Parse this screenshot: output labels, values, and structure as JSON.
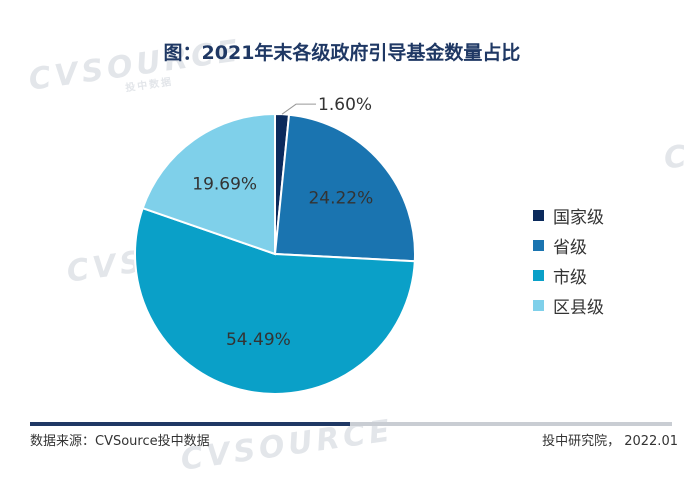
{
  "chart_data": {
    "type": "pie",
    "title": "图：2021年末各级政府引导基金数量占比",
    "slices": [
      {
        "label": "国家级",
        "value": 1.6,
        "display": "1.60%",
        "color": "#0b2a5c"
      },
      {
        "label": "省级",
        "value": 24.22,
        "display": "24.22%",
        "color": "#1a74b0"
      },
      {
        "label": "市级",
        "value": 54.49,
        "display": "54.49%",
        "color": "#0aa0c8"
      },
      {
        "label": "区县级",
        "value": 19.69,
        "display": "19.69%",
        "color": "#7fd0ea"
      }
    ],
    "legend_position": "right"
  },
  "watermark": {
    "text": "CVSOURCE",
    "subtext": "投中数据"
  },
  "footer": {
    "source": "数据来源：CVSource投中数据",
    "credit": "投中研究院， 2022.01"
  }
}
